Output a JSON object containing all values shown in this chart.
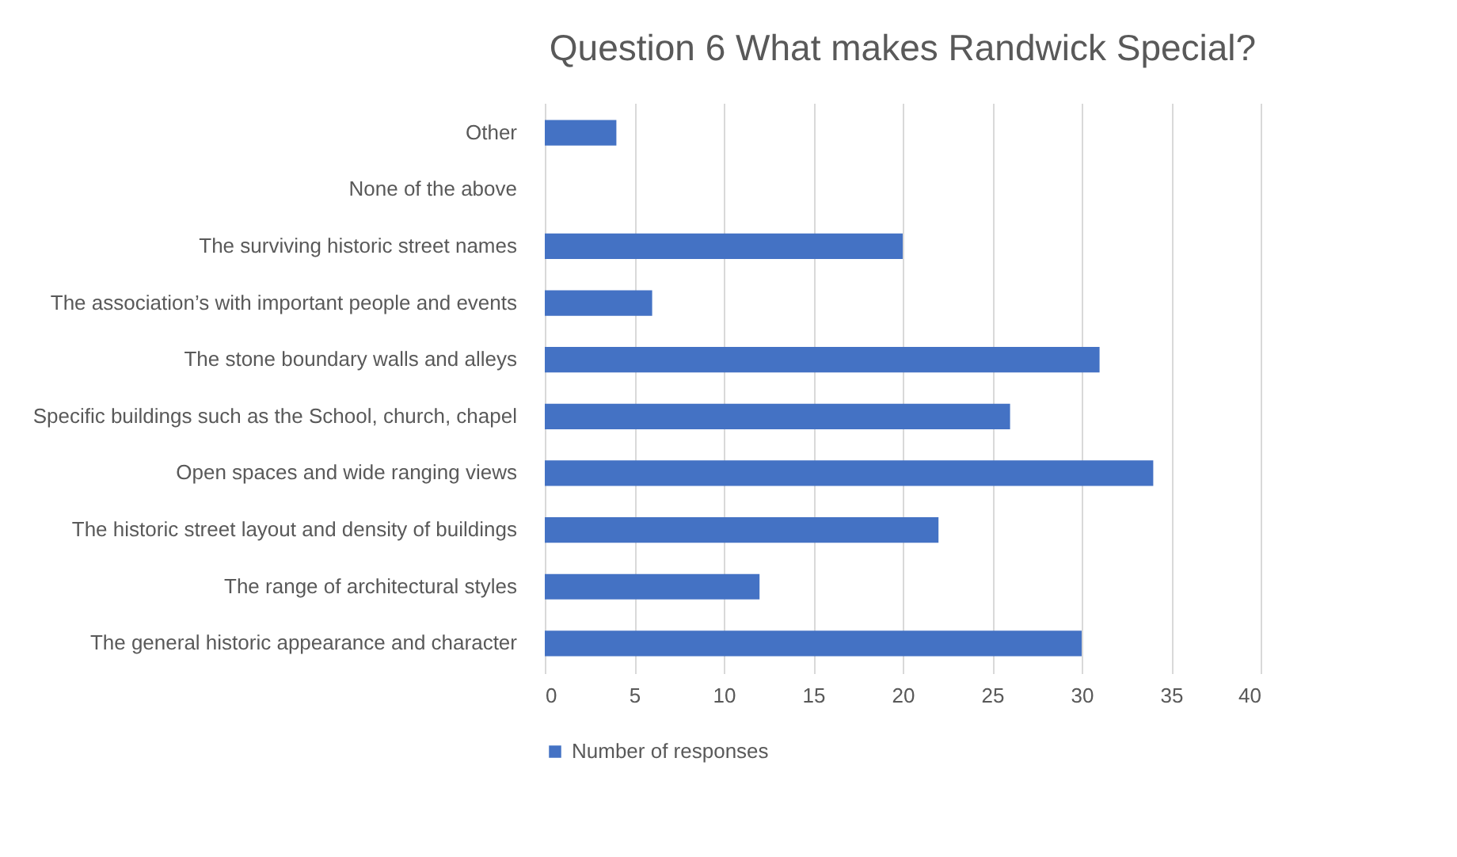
{
  "chart_data": {
    "type": "bar",
    "orientation": "horizontal",
    "title": "Question 6 What makes Randwick Special?",
    "categories": [
      "Other",
      "None of the above",
      "The surviving historic street names",
      "The association’s with important people and events",
      "The stone boundary walls and alleys",
      "Specific buildings such as the School, church, chapel",
      "Open spaces and wide ranging views",
      "The historic street layout and density of buildings",
      "The range of architectural styles",
      "The general historic appearance and character"
    ],
    "series": [
      {
        "name": "Number of responses",
        "color": "#4472c4",
        "values": [
          4,
          0,
          20,
          6,
          31,
          26,
          34,
          22,
          12,
          30
        ]
      }
    ],
    "xlim": [
      0,
      40
    ],
    "xticks": [
      0,
      5,
      10,
      15,
      20,
      25,
      30,
      35,
      40
    ],
    "grid": "x",
    "legend": "bottom"
  }
}
